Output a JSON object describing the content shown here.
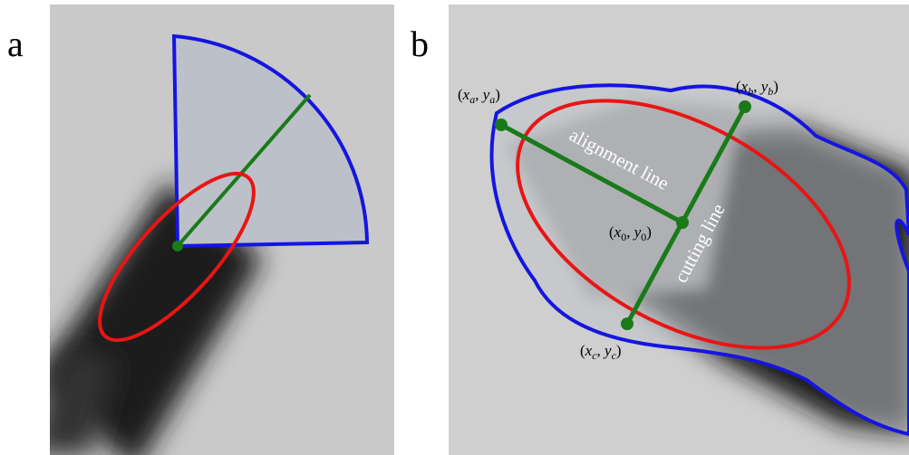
{
  "panel_a": {
    "label": "a"
  },
  "panel_b": {
    "label": "b",
    "points": [
      {
        "parts": [
          "(",
          "x",
          "a",
          ", ",
          "y",
          "a",
          ")"
        ]
      },
      {
        "parts": [
          "(",
          "x",
          "b",
          ", ",
          "y",
          "b",
          ")"
        ]
      },
      {
        "parts": [
          "(",
          "x",
          "0",
          ", ",
          "y",
          "0",
          ")"
        ]
      },
      {
        "parts": [
          "(",
          "x",
          "c",
          ", ",
          "y",
          "c",
          ")"
        ]
      }
    ],
    "alignment_line": "alignment line",
    "cutting_line": "cutting line"
  }
}
